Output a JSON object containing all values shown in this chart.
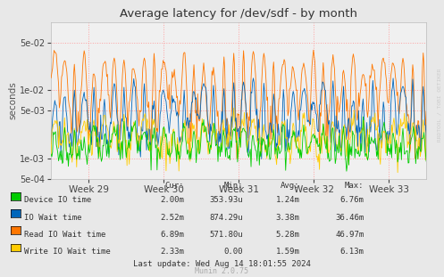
{
  "title": "Average latency for /dev/sdf - by month",
  "ylabel": "seconds",
  "x_tick_labels": [
    "Week 29",
    "Week 30",
    "Week 31",
    "Week 32",
    "Week 33"
  ],
  "ylim_log": [
    0.0005,
    0.1
  ],
  "bg_color": "#e8e8e8",
  "plot_bg_color": "#f0f0f0",
  "grid_color": "#ff9999",
  "yticks": [
    0.0005,
    0.001,
    0.005,
    0.01,
    0.05
  ],
  "ytick_labels": [
    "5e-04",
    "1e-03",
    "5e-03",
    "1e-02",
    "5e-02"
  ],
  "series": [
    {
      "label": "Device IO time",
      "color": "#00cc00"
    },
    {
      "label": "IO Wait time",
      "color": "#0066bb"
    },
    {
      "label": "Read IO Wait time",
      "color": "#ff7700"
    },
    {
      "label": "Write IO Wait time",
      "color": "#ffcc00"
    }
  ],
  "legend_headers": [
    "Cur:",
    "Min:",
    "Avg:",
    "Max:"
  ],
  "legend_rows": [
    [
      "Device IO time",
      "2.00m",
      "353.93u",
      "1.24m",
      "6.76m"
    ],
    [
      "IO Wait time",
      "2.52m",
      "874.29u",
      "3.38m",
      "36.46m"
    ],
    [
      "Read IO Wait time",
      "6.89m",
      "571.80u",
      "5.28m",
      "46.97m"
    ],
    [
      "Write IO Wait time",
      "2.33m",
      "0.00",
      "1.59m",
      "6.13m"
    ]
  ],
  "footer": "Last update: Wed Aug 14 18:01:55 2024",
  "munin_version": "Munin 2.0.75",
  "watermark": "RRDTOOL / TOBI OETIKER",
  "n_points": 500
}
